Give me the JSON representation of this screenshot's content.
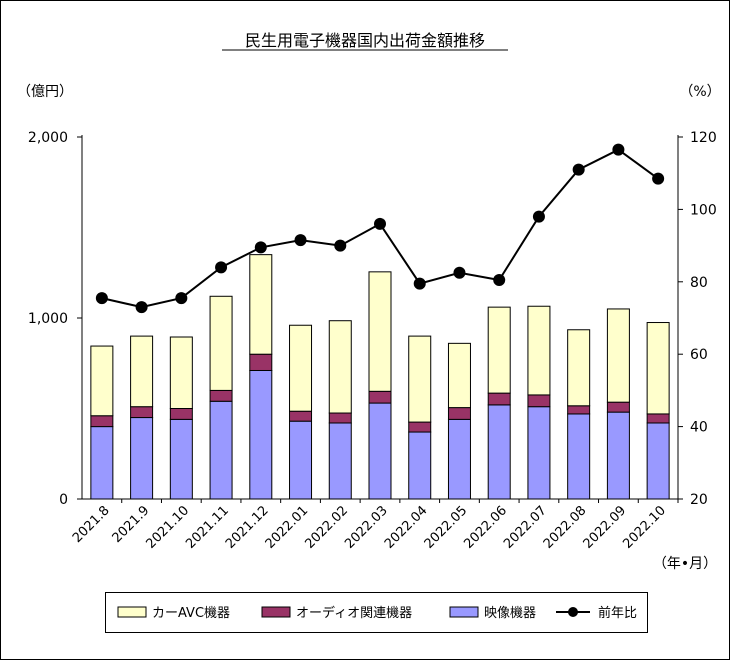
{
  "chart_data": {
    "type": "bar",
    "title": "民生用電子機器国内出荷金額推移",
    "ylabel_left": "（億円）",
    "ylabel_right": "（%）",
    "xlabel": "（年•月）",
    "categories": [
      "2021.8",
      "2021.9",
      "2021.10",
      "2021.11",
      "2021.12",
      "2022.01",
      "2022.02",
      "2022.03",
      "2022.04",
      "2022.05",
      "2022.06",
      "2022.07",
      "2022.08",
      "2022.09",
      "2022.10"
    ],
    "stacked_series": [
      {
        "name": "映像機器",
        "color": "#9999ff",
        "values": [
          400,
          450,
          440,
          540,
          710,
          430,
          420,
          530,
          370,
          440,
          520,
          510,
          470,
          480,
          420
        ]
      },
      {
        "name": "オーディオ関連機器",
        "color": "#993366",
        "values": [
          60,
          60,
          60,
          60,
          90,
          55,
          55,
          65,
          55,
          65,
          65,
          65,
          45,
          55,
          50
        ]
      },
      {
        "name": "カーAVC機器",
        "color": "#ffffcc",
        "values": [
          385,
          390,
          395,
          520,
          550,
          475,
          510,
          660,
          475,
          355,
          475,
          490,
          420,
          515,
          505
        ]
      }
    ],
    "line_series": {
      "name": "前年比",
      "values": [
        75.5,
        73,
        75.5,
        84,
        89.5,
        91.5,
        90,
        96,
        79.5,
        82.5,
        80.5,
        98,
        111,
        116.5,
        108.5
      ]
    },
    "y_left": {
      "min": 0,
      "max": 2000,
      "ticks": [
        0,
        1000,
        2000
      ],
      "tick_labels": [
        "0",
        "1,000",
        "2,000"
      ]
    },
    "y_right": {
      "min": 20,
      "max": 120,
      "ticks": [
        20,
        40,
        60,
        80,
        100,
        120
      ],
      "tick_labels": [
        "20",
        "40",
        "60",
        "80",
        "100",
        "120"
      ]
    },
    "legend": {
      "position": "bottom",
      "items": [
        {
          "label": "カーAVC機器",
          "kind": "bar",
          "color": "#ffffcc"
        },
        {
          "label": "オーディオ関連機器",
          "kind": "bar",
          "color": "#993366"
        },
        {
          "label": "映像機器",
          "kind": "bar",
          "color": "#9999ff"
        },
        {
          "label": "前年比",
          "kind": "line",
          "color": "#000000"
        }
      ]
    }
  }
}
